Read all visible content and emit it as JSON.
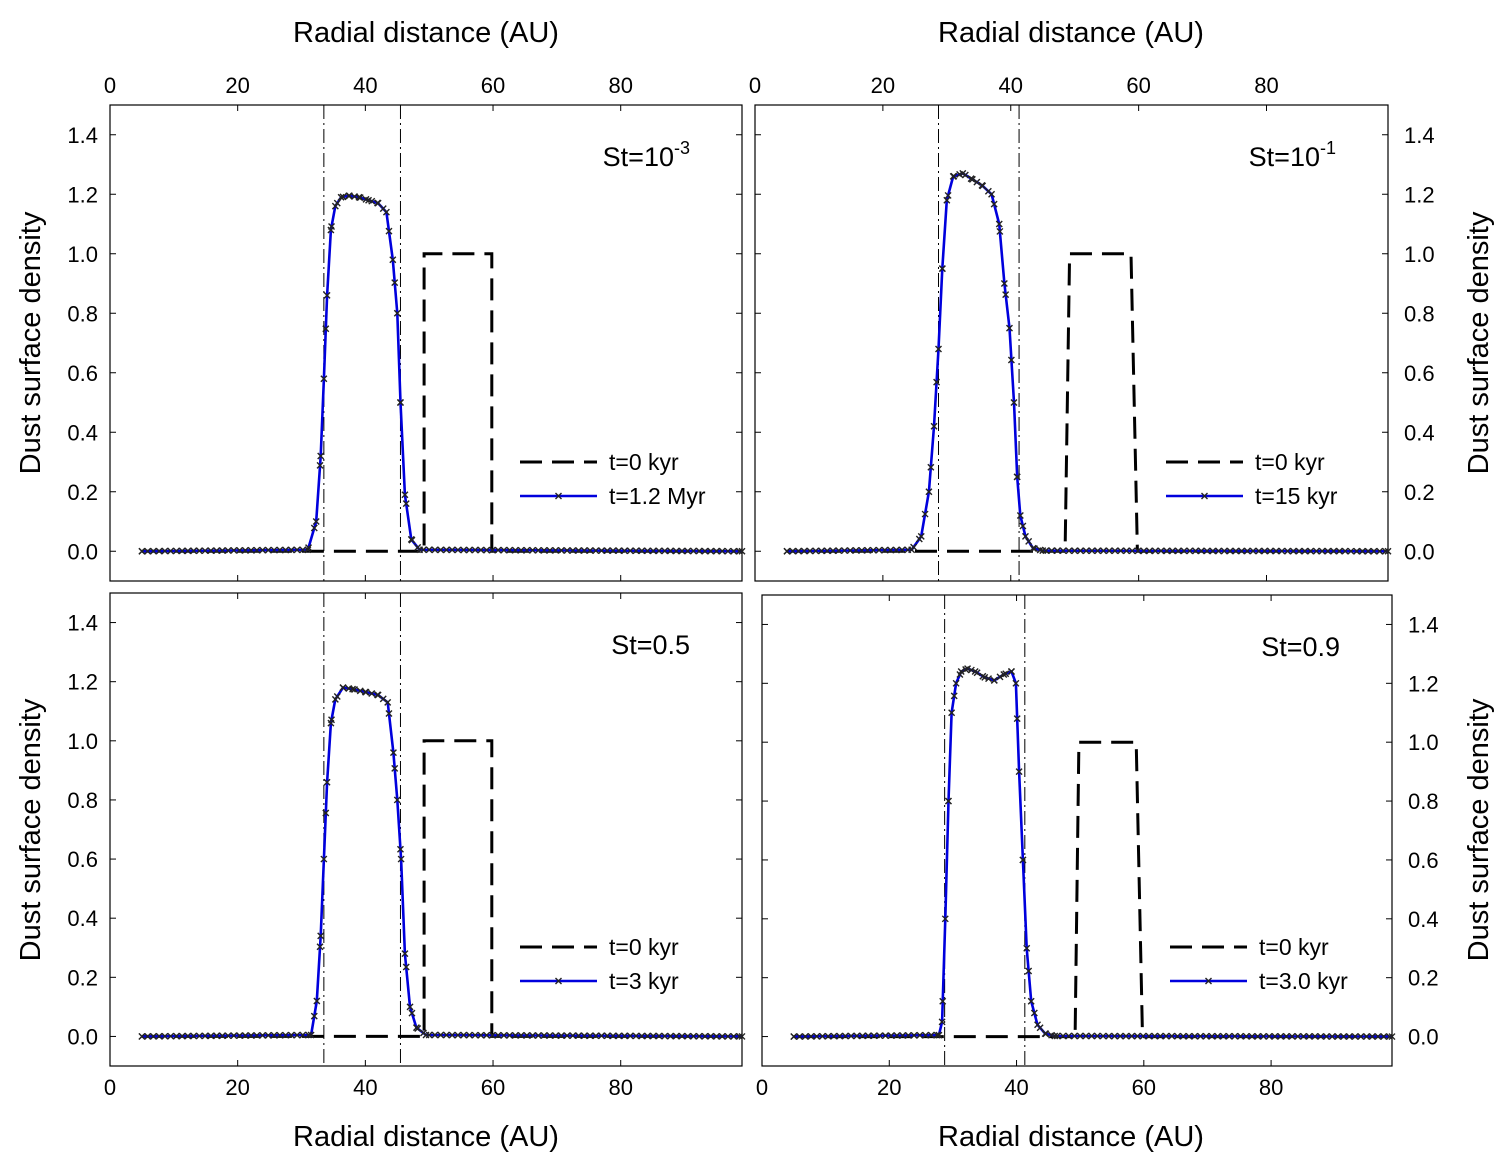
{
  "figure": {
    "x_axis_title": "Radial distance (AU)",
    "y_axis_title": "Dust surface density"
  },
  "chart_data": [
    {
      "type": "line",
      "panel": "top-left",
      "label_main": "St=10",
      "label_sup": "-3",
      "xlim": [
        0,
        99
      ],
      "ylim": [
        -0.1,
        1.5
      ],
      "xticks": [
        0,
        20,
        40,
        60,
        80
      ],
      "yticks": [
        0.0,
        0.2,
        0.4,
        0.6,
        0.8,
        1.0,
        1.2,
        1.4
      ],
      "x_axis_ticks_shown": "top",
      "y_axis_side": "left",
      "vlines": [
        33.5,
        45.5
      ],
      "series": [
        {
          "name": "t=0 kyr",
          "style": "dashed",
          "color": "#000000",
          "x": [
            5,
            49.2,
            49.2,
            59.8,
            59.8,
            99
          ],
          "y": [
            0,
            0,
            1.0,
            1.0,
            0,
            0
          ]
        },
        {
          "name": "t=1.2 Myr",
          "style": "solid-markers",
          "color": "#0000dd",
          "x": [
            5,
            31,
            32.3,
            33.0,
            33.5,
            34.0,
            34.6,
            35.3,
            36.2,
            37.5,
            39,
            40.5,
            42,
            43.3,
            44.3,
            45.0,
            45.5,
            46.2,
            47.2,
            48.5,
            99
          ],
          "y": [
            0,
            0.005,
            0.1,
            0.32,
            0.58,
            0.86,
            1.08,
            1.16,
            1.19,
            1.195,
            1.19,
            1.18,
            1.17,
            1.14,
            0.98,
            0.8,
            0.5,
            0.19,
            0.04,
            0.005,
            0
          ]
        }
      ],
      "legend": [
        "t=0 kyr",
        "t=1.2 Myr"
      ]
    },
    {
      "type": "line",
      "panel": "top-right",
      "label_main": "St=10",
      "label_sup": "-1",
      "xlim": [
        0,
        99
      ],
      "ylim": [
        -0.1,
        1.5
      ],
      "xticks": [
        0,
        20,
        40,
        60,
        80
      ],
      "yticks": [
        0.0,
        0.2,
        0.4,
        0.6,
        0.8,
        1.0,
        1.2,
        1.4
      ],
      "x_axis_ticks_shown": "top",
      "y_axis_side": "right",
      "vlines": [
        28.7,
        41.3
      ],
      "series": [
        {
          "name": "t=0 kyr",
          "style": "dashed",
          "color": "#000000",
          "x": [
            5,
            48.5,
            49.2,
            58.8,
            59.8,
            99
          ],
          "y": [
            0,
            0,
            1.0,
            1.0,
            0,
            0
          ]
        },
        {
          "name": "t=15 kyr",
          "style": "solid-markers",
          "color": "#0000dd",
          "x": [
            5,
            24.5,
            26.0,
            27.2,
            28.0,
            28.7,
            29.3,
            30.0,
            31.0,
            32.5,
            34,
            35.5,
            37,
            38.2,
            39.0,
            39.8,
            40.5,
            41.0,
            41.5,
            42.3,
            43.5,
            45,
            99
          ],
          "y": [
            0,
            0.005,
            0.05,
            0.2,
            0.42,
            0.68,
            0.95,
            1.18,
            1.26,
            1.27,
            1.25,
            1.23,
            1.2,
            1.1,
            0.9,
            0.75,
            0.5,
            0.25,
            0.12,
            0.05,
            0.01,
            0.002,
            0
          ]
        }
      ],
      "legend": [
        "t=0 kyr",
        "t=15 kyr"
      ]
    },
    {
      "type": "line",
      "panel": "bottom-left",
      "label_main": "St=0.5",
      "label_sup": "",
      "xlim": [
        0,
        99
      ],
      "ylim": [
        -0.1,
        1.5
      ],
      "xticks": [
        0,
        20,
        40,
        60,
        80
      ],
      "yticks": [
        0.0,
        0.2,
        0.4,
        0.6,
        0.8,
        1.0,
        1.2,
        1.4
      ],
      "x_axis_ticks_shown": "bottom",
      "y_axis_side": "left",
      "vlines": [
        33.5,
        45.5
      ],
      "series": [
        {
          "name": "t=0 kyr",
          "style": "dashed",
          "color": "#000000",
          "x": [
            5,
            49.2,
            49.2,
            59.8,
            59.8,
            99
          ],
          "y": [
            0,
            0,
            1.0,
            1.0,
            0,
            0
          ]
        },
        {
          "name": "t=3 kyr",
          "style": "solid-markers",
          "color": "#0000dd",
          "x": [
            5,
            31.5,
            32.4,
            33.0,
            33.5,
            34.0,
            34.6,
            35.3,
            36.5,
            38,
            40,
            42,
            43.5,
            44.4,
            45.0,
            45.6,
            46.2,
            47.0,
            48.0,
            49.5,
            99
          ],
          "y": [
            0,
            0.005,
            0.12,
            0.34,
            0.6,
            0.86,
            1.06,
            1.14,
            1.18,
            1.175,
            1.165,
            1.155,
            1.13,
            0.96,
            0.8,
            0.6,
            0.28,
            0.1,
            0.03,
            0.005,
            0
          ]
        }
      ],
      "legend": [
        "t=0 kyr",
        "t=3 kyr"
      ]
    },
    {
      "type": "line",
      "panel": "bottom-right",
      "label_main": "St=0.9",
      "label_sup": "",
      "xlim": [
        0,
        99
      ],
      "ylim": [
        -0.1,
        1.5
      ],
      "xticks": [
        0,
        20,
        40,
        60,
        80
      ],
      "yticks": [
        0.0,
        0.2,
        0.4,
        0.6,
        0.8,
        1.0,
        1.2,
        1.4
      ],
      "x_axis_ticks_shown": "bottom",
      "y_axis_side": "right",
      "vlines": [
        28.7,
        41.3
      ],
      "series": [
        {
          "name": "t=0 kyr",
          "style": "dashed",
          "color": "#000000",
          "x": [
            5,
            49.2,
            49.8,
            58.8,
            59.8,
            99
          ],
          "y": [
            0,
            0,
            1.0,
            1.0,
            0,
            0
          ]
        },
        {
          "name": "t=3.0 kyr",
          "style": "solid-markers",
          "color": "#0000dd",
          "x": [
            5,
            27.8,
            28.3,
            28.8,
            29.3,
            29.8,
            30.5,
            31.3,
            32.3,
            33.5,
            35,
            36.5,
            38,
            39.2,
            39.9,
            40.4,
            41.0,
            41.6,
            42.3,
            43.3,
            44.5,
            46,
            99
          ],
          "y": [
            0,
            0.005,
            0.05,
            0.4,
            0.8,
            1.1,
            1.2,
            1.24,
            1.25,
            1.24,
            1.22,
            1.21,
            1.23,
            1.24,
            1.2,
            0.9,
            0.6,
            0.3,
            0.12,
            0.04,
            0.01,
            0.002,
            0
          ]
        }
      ],
      "legend": [
        "t=0 kyr",
        "t=3.0 kyr"
      ]
    }
  ]
}
